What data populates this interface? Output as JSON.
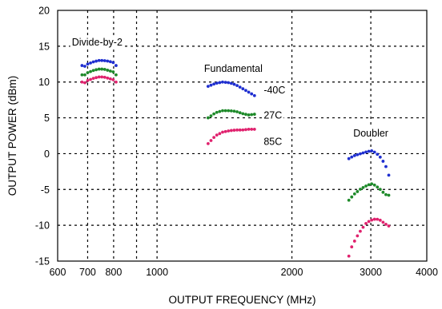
{
  "chart_data": {
    "type": "scatter",
    "title": "",
    "xlabel": "OUTPUT FREQUENCY (MHz)",
    "ylabel": "OUTPUT POWER (dBm)",
    "xscale": "log",
    "xlim": [
      600,
      4000
    ],
    "ylim": [
      -15,
      20
    ],
    "grid": true,
    "grid_style": "dotted",
    "x_ticks": [
      {
        "value": 600,
        "label": "600"
      },
      {
        "value": 700,
        "label": "700"
      },
      {
        "value": 800,
        "label": "800"
      },
      {
        "value": 1000,
        "label": "1000"
      },
      {
        "value": 2000,
        "label": "2000"
      },
      {
        "value": 3000,
        "label": "3000"
      },
      {
        "value": 4000,
        "label": "4000"
      }
    ],
    "x_gridlines": [
      700,
      800,
      900,
      1000,
      2000,
      3000
    ],
    "y_ticks": [
      -15,
      -10,
      -5,
      0,
      5,
      10,
      15,
      20
    ],
    "series": [
      {
        "name": "-40C",
        "color": "#1f2fd0",
        "segments": [
          {
            "group": "Divide-by-2",
            "x_range": [
              680,
              810
            ],
            "points": [
              [
                680,
                11.9
              ],
              [
                700,
                12.5
              ],
              [
                720,
                12.8
              ],
              [
                740,
                13.0
              ],
              [
                760,
                13.0
              ],
              [
                780,
                12.9
              ],
              [
                800,
                12.7
              ],
              [
                810,
                12.3
              ]
            ]
          },
          {
            "group": "Fundamental",
            "x_range": [
              1300,
              1660
            ],
            "points": [
              [
                1300,
                9.4
              ],
              [
                1350,
                9.8
              ],
              [
                1400,
                10.0
              ],
              [
                1450,
                9.9
              ],
              [
                1500,
                9.6
              ],
              [
                1550,
                9.1
              ],
              [
                1600,
                8.6
              ],
              [
                1650,
                8.1
              ]
            ]
          },
          {
            "group": "Doubler",
            "x_range": [
              2680,
              3300
            ],
            "points": [
              [
                2680,
                -0.7
              ],
              [
                2750,
                -0.3
              ],
              [
                2850,
                0.0
              ],
              [
                2950,
                0.3
              ],
              [
                3020,
                0.4
              ],
              [
                3080,
                0.1
              ],
              [
                3150,
                -0.5
              ],
              [
                3230,
                -1.5
              ],
              [
                3290,
                -3.0
              ]
            ]
          }
        ]
      },
      {
        "name": "27C",
        "color": "#1e8a2a",
        "segments": [
          {
            "group": "Divide-by-2",
            "x_range": [
              680,
              810
            ],
            "points": [
              [
                680,
                10.7
              ],
              [
                700,
                11.3
              ],
              [
                720,
                11.6
              ],
              [
                740,
                11.8
              ],
              [
                760,
                11.8
              ],
              [
                780,
                11.6
              ],
              [
                800,
                11.4
              ],
              [
                810,
                11.0
              ]
            ]
          },
          {
            "group": "Fundamental",
            "x_range": [
              1300,
              1660
            ],
            "points": [
              [
                1300,
                5.0
              ],
              [
                1350,
                5.7
              ],
              [
                1400,
                6.0
              ],
              [
                1450,
                6.0
              ],
              [
                1500,
                5.9
              ],
              [
                1550,
                5.6
              ],
              [
                1600,
                5.4
              ],
              [
                1650,
                5.5
              ]
            ]
          },
          {
            "group": "Doubler",
            "x_range": [
              2680,
              3300
            ],
            "points": [
              [
                2680,
                -6.5
              ],
              [
                2750,
                -5.7
              ],
              [
                2850,
                -4.9
              ],
              [
                2950,
                -4.4
              ],
              [
                3020,
                -4.2
              ],
              [
                3080,
                -4.5
              ],
              [
                3150,
                -5.0
              ],
              [
                3230,
                -5.7
              ],
              [
                3290,
                -5.8
              ]
            ]
          }
        ]
      },
      {
        "name": "85C",
        "color": "#e0226e",
        "segments": [
          {
            "group": "Divide-by-2",
            "x_range": [
              680,
              810
            ],
            "points": [
              [
                680,
                9.6
              ],
              [
                700,
                10.2
              ],
              [
                720,
                10.5
              ],
              [
                740,
                10.7
              ],
              [
                760,
                10.7
              ],
              [
                780,
                10.5
              ],
              [
                800,
                10.3
              ],
              [
                810,
                10.0
              ]
            ]
          },
          {
            "group": "Fundamental",
            "x_range": [
              1300,
              1660
            ],
            "points": [
              [
                1300,
                1.4
              ],
              [
                1350,
                2.5
              ],
              [
                1400,
                3.0
              ],
              [
                1450,
                3.2
              ],
              [
                1500,
                3.3
              ],
              [
                1550,
                3.3
              ],
              [
                1600,
                3.4
              ],
              [
                1650,
                3.4
              ]
            ]
          },
          {
            "group": "Doubler",
            "x_range": [
              2680,
              3300
            ],
            "points": [
              [
                2680,
                -14.3
              ],
              [
                2720,
                -13.0
              ],
              [
                2780,
                -11.8
              ],
              [
                2850,
                -10.7
              ],
              [
                2930,
                -9.7
              ],
              [
                3000,
                -9.3
              ],
              [
                3080,
                -9.1
              ],
              [
                3150,
                -9.3
              ],
              [
                3230,
                -9.8
              ],
              [
                3290,
                -10.1
              ]
            ]
          }
        ]
      }
    ],
    "annotations": [
      {
        "text": "Divide-by-2",
        "x": 735,
        "y": 15.6,
        "anchor": "middle"
      },
      {
        "text": "Fundamental",
        "x": 1480,
        "y": 11.9,
        "anchor": "middle"
      },
      {
        "text": "Doubler",
        "x": 3000,
        "y": 2.9,
        "anchor": "middle"
      },
      {
        "text": "-40C",
        "x": 1730,
        "y": 8.9,
        "anchor": "start"
      },
      {
        "text": "27C",
        "x": 1730,
        "y": 5.4,
        "anchor": "start"
      },
      {
        "text": "85C",
        "x": 1730,
        "y": 1.7,
        "anchor": "start"
      }
    ]
  }
}
